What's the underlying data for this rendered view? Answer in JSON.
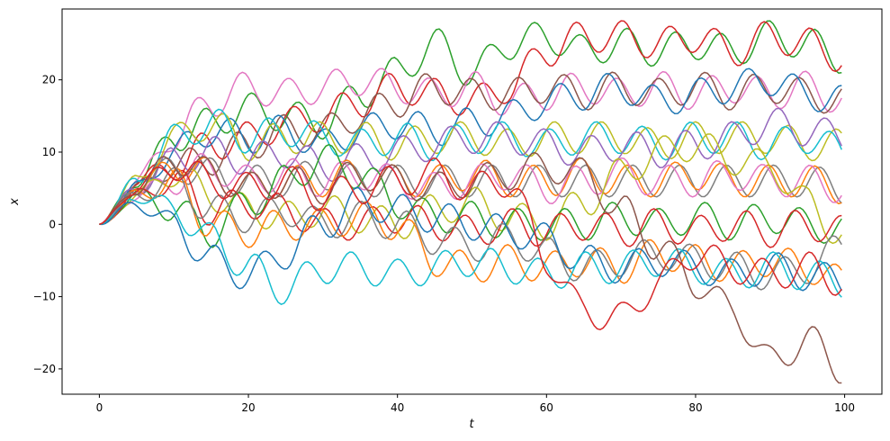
{
  "chart_data": {
    "type": "line",
    "title": "",
    "xlabel": "t",
    "ylabel": "x",
    "xlim": [
      -5,
      105
    ],
    "ylim": [
      -23.5,
      29.8
    ],
    "xticks": [
      0,
      20,
      40,
      60,
      80,
      100
    ],
    "yticks": [
      -20,
      -10,
      0,
      10,
      20
    ],
    "xtick_labels": [
      "0",
      "20",
      "40",
      "60",
      "80",
      "100"
    ],
    "ytick_labels": [
      "−20",
      "−10",
      "0",
      "10",
      "20"
    ],
    "grid": false,
    "legend": "none",
    "x": [
      0,
      5,
      10,
      15,
      20,
      25,
      30,
      35,
      40,
      45,
      50,
      55,
      60,
      65,
      70,
      75,
      80,
      85,
      90,
      95,
      100
    ],
    "series": [
      {
        "color": "#2ca02c",
        "values": [
          0,
          6,
          12,
          14,
          16,
          15,
          14,
          18,
          21,
          25,
          21,
          25,
          26,
          24,
          25,
          24,
          25,
          24,
          26,
          25,
          23
        ]
      },
      {
        "color": "#d62728",
        "values": [
          0,
          6,
          8,
          11,
          12,
          14,
          15,
          17,
          19,
          18,
          17,
          19,
          24,
          26,
          26,
          25,
          26,
          24,
          26,
          25,
          23
        ]
      },
      {
        "color": "#e377c2",
        "values": [
          0,
          6,
          12,
          17,
          19,
          18,
          19,
          20,
          19,
          18,
          19,
          17,
          18,
          19,
          18,
          19,
          18,
          19,
          18,
          19,
          17
        ]
      },
      {
        "color": "#8c564b",
        "values": [
          0,
          5,
          8,
          9,
          11,
          13,
          13,
          15,
          17,
          19,
          18,
          18,
          19,
          18,
          19,
          18,
          19,
          18,
          19,
          18,
          17
        ]
      },
      {
        "color": "#1f77b4",
        "values": [
          0,
          5,
          10,
          13,
          12,
          13,
          11,
          13,
          14,
          13,
          14,
          15,
          17,
          18,
          19,
          17,
          18,
          19,
          20,
          18,
          17
        ]
      },
      {
        "color": "#bcbd22",
        "values": [
          0,
          6,
          12,
          14,
          11,
          12,
          12,
          12,
          11,
          12,
          12,
          11,
          12,
          12,
          12,
          11,
          12,
          12,
          12,
          11,
          11
        ]
      },
      {
        "color": "#17becf",
        "values": [
          0,
          6,
          12,
          14,
          12,
          13,
          12,
          11,
          12,
          11,
          12,
          12,
          11,
          12,
          12,
          11,
          12,
          12,
          11,
          12,
          10
        ]
      },
      {
        "color": "#9467bd",
        "values": [
          0,
          5,
          9,
          10,
          9,
          10,
          8,
          9,
          10,
          11,
          12,
          12,
          11,
          10,
          11,
          10,
          11,
          12,
          14,
          13,
          12
        ]
      },
      {
        "color": "#7f7f7f",
        "values": [
          0,
          5,
          8,
          7,
          6,
          6,
          7,
          6,
          6,
          6,
          6,
          6,
          6,
          6,
          6,
          6,
          6,
          6,
          6,
          6,
          5
        ]
      },
      {
        "color": "#ff7f0e",
        "values": [
          0,
          5,
          8,
          7,
          5,
          6,
          6,
          7,
          6,
          6,
          7,
          6,
          6,
          7,
          6,
          6,
          7,
          6,
          6,
          6,
          5
        ]
      },
      {
        "color": "#e377c2",
        "values": [
          0,
          4,
          6,
          8,
          6,
          7,
          6,
          7,
          6,
          5,
          6,
          7,
          5,
          6,
          7,
          6,
          6,
          7,
          6,
          6,
          5
        ]
      },
      {
        "color": "#bcbd22",
        "values": [
          0,
          4,
          7,
          4,
          2,
          1,
          2,
          1,
          0,
          2,
          3,
          1,
          0,
          3,
          7,
          10,
          11,
          9,
          8,
          3,
          -2
        ]
      },
      {
        "color": "#2ca02c",
        "values": [
          0,
          4,
          2,
          -1,
          3,
          6,
          9,
          7,
          3,
          1,
          1,
          0,
          0,
          0,
          1,
          0,
          1,
          0,
          1,
          0,
          -1
        ]
      },
      {
        "color": "#d62728",
        "values": [
          0,
          4,
          6,
          2,
          3,
          2,
          0,
          0,
          1,
          0,
          -1,
          0,
          -1,
          0,
          -1,
          0,
          -1,
          0,
          -1,
          0,
          -1
        ]
      },
      {
        "color": "#ff7f0e",
        "values": [
          0,
          4,
          6,
          0,
          -1,
          0,
          0,
          1,
          0,
          -5,
          -6,
          -5,
          -6,
          -5,
          -6,
          -4,
          -5,
          -6,
          -5,
          -6,
          -8
        ]
      },
      {
        "color": "#7f7f7f",
        "values": [
          0,
          4,
          6,
          2,
          1,
          2,
          0,
          1,
          0,
          -2,
          -3,
          -2,
          -4,
          -6,
          -5,
          -4,
          -5,
          -6,
          -7,
          -6,
          -3
        ]
      },
      {
        "color": "#1f77b4",
        "values": [
          0,
          3,
          0,
          -5,
          -7,
          -4,
          0,
          3,
          2,
          1,
          0,
          -1,
          -2,
          -5,
          -6,
          -5,
          -6,
          -7,
          -6,
          -7,
          -8
        ]
      },
      {
        "color": "#17becf",
        "values": [
          0,
          4,
          2,
          -2,
          -6,
          -9,
          -6,
          -6,
          -7,
          -6,
          -5,
          -6,
          -7,
          -6,
          -6,
          -5,
          -6,
          -7,
          -6,
          -7,
          -8
        ]
      },
      {
        "color": "#8c564b",
        "values": [
          0,
          5,
          9,
          7,
          5,
          6,
          5,
          7,
          6,
          5,
          6,
          7,
          8,
          7,
          2,
          -3,
          -8,
          -12,
          -19,
          -16,
          -20
        ]
      },
      {
        "color": "#d62728",
        "values": [
          0,
          5,
          8,
          6,
          5,
          6,
          4,
          5,
          6,
          7,
          5,
          6,
          -5,
          -12,
          -13,
          -8,
          -4,
          -6,
          -7,
          -6,
          -8
        ]
      }
    ]
  }
}
